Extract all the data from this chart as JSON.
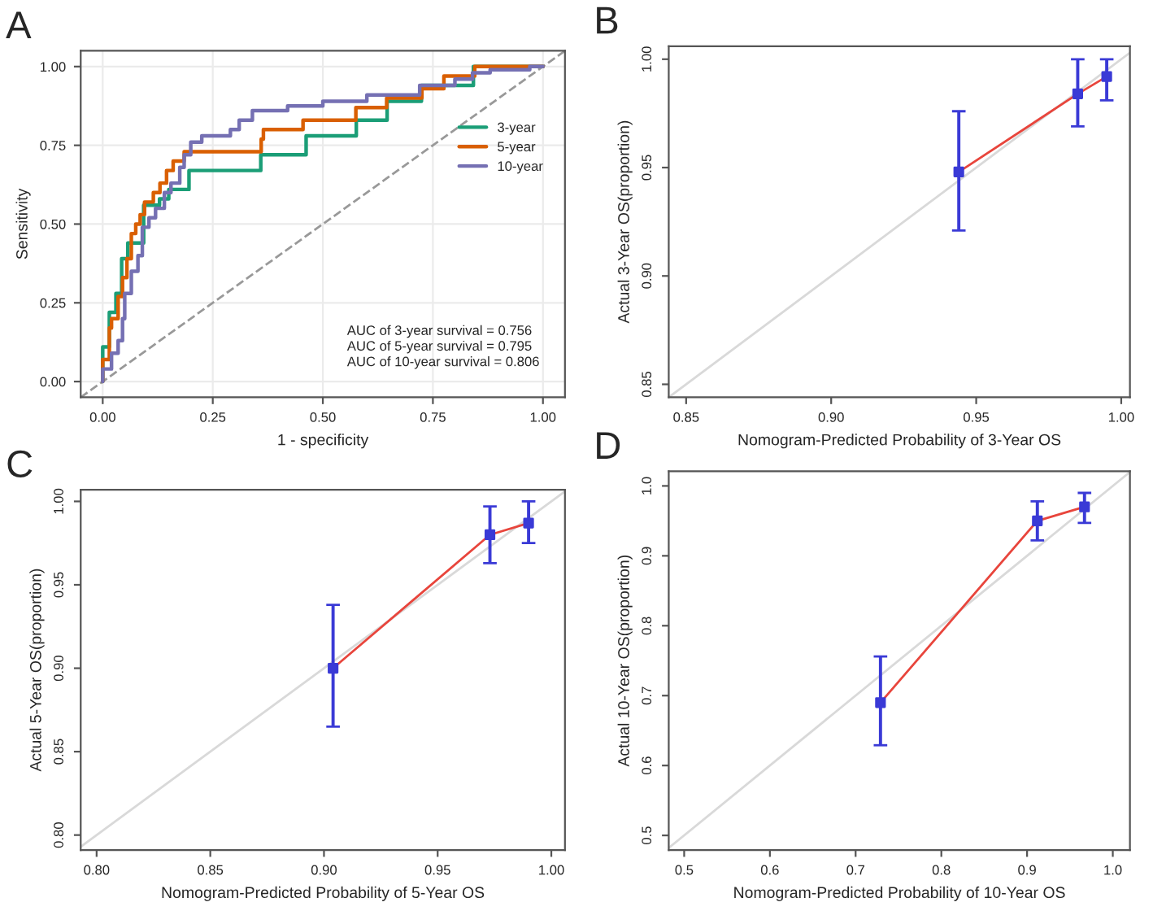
{
  "chart_data": [
    {
      "type": "step",
      "title": "A",
      "xlabel": "1 - specificity",
      "ylabel": "Sensitivity",
      "xlim": [
        -0.05,
        1.05
      ],
      "ylim": [
        -0.05,
        1.05
      ],
      "xticks": [
        {
          "value": 0,
          "label": "0.00"
        },
        {
          "value": 0.25,
          "label": "0.25"
        },
        {
          "value": 0.5,
          "label": "0.50"
        },
        {
          "value": 0.75,
          "label": "0.75"
        },
        {
          "value": 1,
          "label": "1.00"
        }
      ],
      "yticks": [
        {
          "value": 0,
          "label": "0.00"
        },
        {
          "value": 0.25,
          "label": "0.25"
        },
        {
          "value": 0.5,
          "label": "0.50"
        },
        {
          "value": 0.75,
          "label": "0.75"
        },
        {
          "value": 1,
          "label": "1.00"
        }
      ],
      "grid": true,
      "legend": "right",
      "annotations": [
        "AUC of 3-year survival = 0.756",
        "AUC of 5-year survival = 0.795",
        "AUC of 10-year survival = 0.806"
      ],
      "series": [
        {
          "type": "line",
          "color": "#999999",
          "line_style": "dashed",
          "x": [
            -0.05,
            1.05
          ],
          "values": [
            -0.05,
            1.05
          ]
        },
        {
          "name": "3-year",
          "color": "#1b9e77",
          "x": [
            0,
            0,
            0.015,
            0.03,
            0.043,
            0.057,
            0.093,
            0.129,
            0.15,
            0.196,
            0.359,
            0.462,
            0.576,
            0.646,
            0.724,
            0.842,
            1
          ],
          "values": [
            0,
            0.11,
            0.22,
            0.28,
            0.39,
            0.44,
            0.56,
            0.58,
            0.61,
            0.67,
            0.72,
            0.78,
            0.83,
            0.89,
            0.94,
            1,
            1
          ]
        },
        {
          "name": "5-year",
          "color": "#d95f02",
          "x": [
            0,
            0,
            0.015,
            0.02,
            0.035,
            0.045,
            0.055,
            0.065,
            0.075,
            0.085,
            0.095,
            0.115,
            0.13,
            0.145,
            0.16,
            0.185,
            0.36,
            0.365,
            0.455,
            0.575,
            0.645,
            0.725,
            0.775,
            0.845,
            1
          ],
          "values": [
            0,
            0.07,
            0.17,
            0.2,
            0.27,
            0.33,
            0.39,
            0.47,
            0.5,
            0.53,
            0.57,
            0.6,
            0.63,
            0.67,
            0.7,
            0.73,
            0.77,
            0.8,
            0.83,
            0.87,
            0.9,
            0.93,
            0.97,
            1,
            1
          ]
        },
        {
          "name": "10-year",
          "color": "#7570b3",
          "x": [
            0,
            0,
            0.02,
            0.035,
            0.045,
            0.05,
            0.065,
            0.08,
            0.09,
            0.105,
            0.12,
            0.14,
            0.155,
            0.175,
            0.185,
            0.2,
            0.225,
            0.29,
            0.31,
            0.34,
            0.42,
            0.5,
            0.6,
            0.72,
            0.8,
            0.84,
            0.88,
            0.97,
            1
          ],
          "values": [
            0,
            0.04,
            0.09,
            0.13,
            0.2,
            0.28,
            0.35,
            0.4,
            0.49,
            0.52,
            0.55,
            0.6,
            0.63,
            0.68,
            0.72,
            0.76,
            0.78,
            0.8,
            0.83,
            0.86,
            0.875,
            0.89,
            0.91,
            0.94,
            0.96,
            0.98,
            0.99,
            1,
            1
          ]
        }
      ]
    },
    {
      "type": "line",
      "title": "B",
      "xlabel": "Nomogram-Predicted Probability of 3-Year OS",
      "ylabel": "Actual 3-Year OS(proportion)",
      "xlim": [
        0.844,
        1.003
      ],
      "ylim": [
        0.844,
        1.006
      ],
      "xticks": [
        0.85,
        {
          "value": 0.9,
          "label": "0.90"
        },
        0.95,
        {
          "value": 1,
          "label": "1.00"
        }
      ],
      "yticks": [
        0.85,
        {
          "value": 0.9,
          "label": "0.90"
        },
        0.95,
        {
          "value": 1,
          "label": "1.00"
        }
      ],
      "series": [
        {
          "type": "line",
          "color": "#d9d9d9",
          "x": [
            0.844,
            1.003
          ],
          "values": [
            0.844,
            1.003
          ]
        },
        {
          "type": "line",
          "color": "#e8453c",
          "x": [
            0.944,
            0.985,
            0.995
          ],
          "values": [
            0.948,
            0.984,
            0.992
          ]
        },
        {
          "type": "scatter",
          "marker": "square",
          "color": "#3a3ad6",
          "x": [
            0.944,
            0.985,
            0.995
          ],
          "values": [
            0.948,
            0.984,
            0.992
          ],
          "errors": [
            [
              0.921,
              0.976
            ],
            [
              0.969,
              1.0
            ],
            [
              0.981,
              1.0
            ]
          ]
        }
      ]
    },
    {
      "type": "line",
      "title": "C",
      "xlabel": "Nomogram-Predicted Probability of 5-Year OS",
      "ylabel": "Actual 5-Year OS(proportion)",
      "xlim": [
        0.793,
        1.006
      ],
      "ylim": [
        0.791,
        1.007
      ],
      "xticks": [
        {
          "value": 0.8,
          "label": "0.80"
        },
        0.85,
        {
          "value": 0.9,
          "label": "0.90"
        },
        0.95,
        {
          "value": 1,
          "label": "1.00"
        }
      ],
      "yticks": [
        {
          "value": 0.8,
          "label": "0.80"
        },
        0.85,
        {
          "value": 0.9,
          "label": "0.90"
        },
        0.95,
        {
          "value": 1,
          "label": "1.00"
        }
      ],
      "series": [
        {
          "type": "line",
          "color": "#d9d9d9",
          "x": [
            0.793,
            1.006
          ],
          "values": [
            0.793,
            1.006
          ]
        },
        {
          "type": "line",
          "color": "#e8453c",
          "x": [
            0.904,
            0.973,
            0.99
          ],
          "values": [
            0.9,
            0.98,
            0.987
          ]
        },
        {
          "type": "scatter",
          "marker": "square",
          "color": "#3a3ad6",
          "x": [
            0.904,
            0.973,
            0.99
          ],
          "values": [
            0.9,
            0.98,
            0.987
          ],
          "errors": [
            [
              0.865,
              0.938
            ],
            [
              0.963,
              0.997
            ],
            [
              0.975,
              1.0
            ]
          ]
        }
      ]
    },
    {
      "type": "line",
      "title": "D",
      "xlabel": "Nomogram-Predicted Probability of 10-Year OS",
      "ylabel": "Actual 10-Year OS(proportion)",
      "xlim": [
        0.482,
        1.02
      ],
      "ylim": [
        0.479,
        1.021
      ],
      "xticks": [
        0.5,
        0.6,
        0.7,
        0.8,
        0.9,
        {
          "value": 1,
          "label": "1.0"
        }
      ],
      "yticks": [
        0.5,
        0.6,
        0.7,
        0.8,
        0.9,
        {
          "value": 1,
          "label": "1.0"
        }
      ],
      "series": [
        {
          "type": "line",
          "color": "#d9d9d9",
          "x": [
            0.482,
            1.02
          ],
          "values": [
            0.482,
            1.02
          ]
        },
        {
          "type": "line",
          "color": "#e8453c",
          "x": [
            0.729,
            0.912,
            0.967
          ],
          "values": [
            0.69,
            0.95,
            0.97
          ]
        },
        {
          "type": "scatter",
          "marker": "square",
          "color": "#3a3ad6",
          "x": [
            0.729,
            0.912,
            0.967
          ],
          "values": [
            0.69,
            0.95,
            0.97
          ],
          "errors": [
            [
              0.629,
              0.756
            ],
            [
              0.922,
              0.978
            ],
            [
              0.947,
              0.99
            ]
          ]
        }
      ]
    }
  ]
}
